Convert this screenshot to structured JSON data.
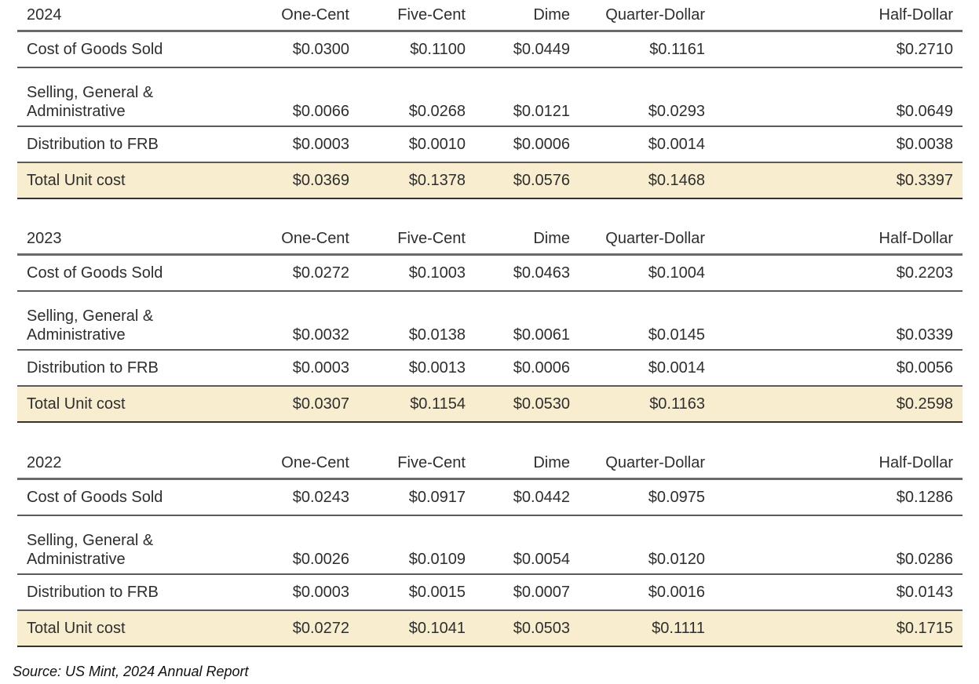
{
  "columns": [
    "One-Cent",
    "Five-Cent",
    "Dime",
    "Quarter-Dollar",
    "Half-Dollar"
  ],
  "tables": [
    {
      "year": "2024",
      "rows": [
        {
          "label": "Cost of Goods Sold",
          "values": [
            "$0.0300",
            "$0.1100",
            "$0.0449",
            "$0.1161",
            "$0.2710"
          ]
        },
        {
          "label_line1": "Selling, General &",
          "label_line2": "Administrative",
          "values": [
            "$0.0066",
            "$0.0268",
            "$0.0121",
            "$0.0293",
            "$0.0649"
          ]
        },
        {
          "label": "Distribution to FRB",
          "values": [
            "$0.0003",
            "$0.0010",
            "$0.0006",
            "$0.0014",
            "$0.0038"
          ]
        },
        {
          "label": "Total Unit cost",
          "values": [
            "$0.0369",
            "$0.1378",
            "$0.0576",
            "$0.1468",
            "$0.3397"
          ]
        }
      ]
    },
    {
      "year": "2023",
      "rows": [
        {
          "label": "Cost of Goods Sold",
          "values": [
            "$0.0272",
            "$0.1003",
            "$0.0463",
            "$0.1004",
            "$0.2203"
          ]
        },
        {
          "label_line1": "Selling, General &",
          "label_line2": "Administrative",
          "values": [
            "$0.0032",
            "$0.0138",
            "$0.0061",
            "$0.0145",
            "$0.0339"
          ]
        },
        {
          "label": "Distribution to FRB",
          "values": [
            "$0.0003",
            "$0.0013",
            "$0.0006",
            "$0.0014",
            "$0.0056"
          ]
        },
        {
          "label": "Total Unit cost",
          "values": [
            "$0.0307",
            "$0.1154",
            "$0.0530",
            "$0.1163",
            "$0.2598"
          ]
        }
      ]
    },
    {
      "year": "2022",
      "rows": [
        {
          "label": "Cost of Goods Sold",
          "values": [
            "$0.0243",
            "$0.0917",
            "$0.0442",
            "$0.0975",
            "$0.1286"
          ]
        },
        {
          "label_line1": "Selling, General &",
          "label_line2": "Administrative",
          "values": [
            "$0.0026",
            "$0.0109",
            "$0.0054",
            "$0.0120",
            "$0.0286"
          ]
        },
        {
          "label": "Distribution to FRB",
          "values": [
            "$0.0003",
            "$0.0015",
            "$0.0007",
            "$0.0016",
            "$0.0143"
          ]
        },
        {
          "label": "Total Unit cost",
          "values": [
            "$0.0272",
            "$0.1041",
            "$0.0503",
            "$0.1111",
            "$0.1715"
          ]
        }
      ]
    }
  ],
  "colors": {
    "total_row_bg": "#f8edcf",
    "rule": "#5a5a5a"
  },
  "source": "Source: US Mint, 2024 Annual Report"
}
